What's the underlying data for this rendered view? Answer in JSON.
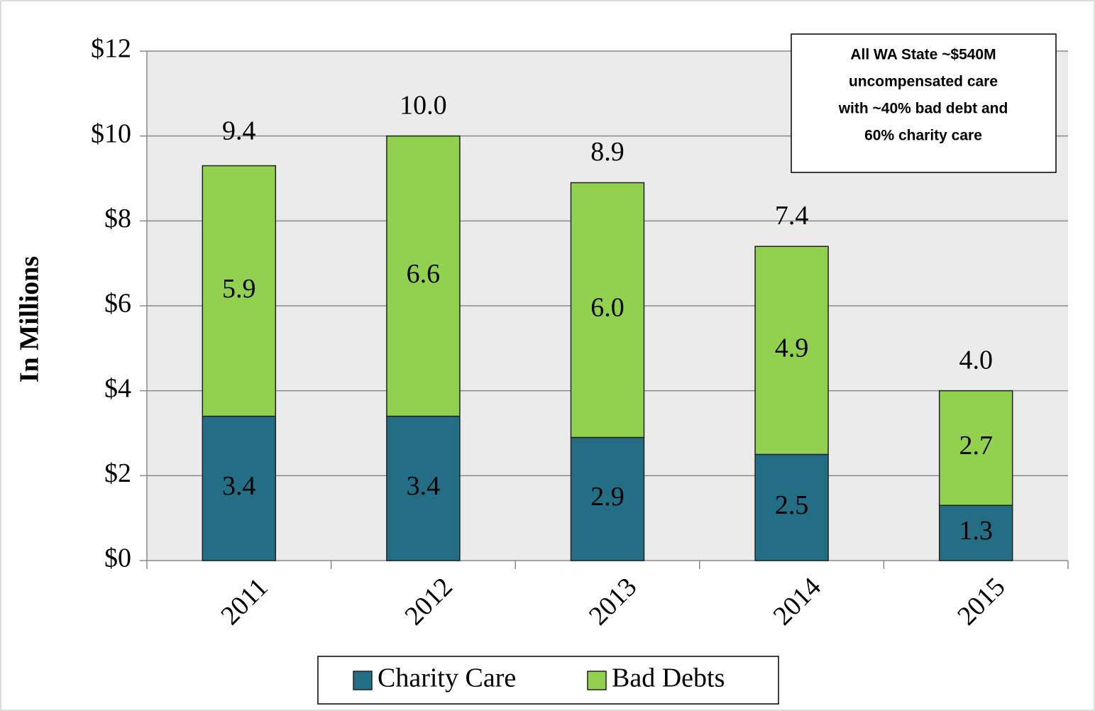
{
  "chart_data": {
    "type": "bar",
    "stacked": true,
    "ylabel": "In Millions",
    "categories": [
      "2011",
      "2012",
      "2013",
      "2014",
      "2015"
    ],
    "series": [
      {
        "name": "Charity Care",
        "color": "#236e85",
        "values": [
          3.4,
          3.4,
          2.9,
          2.5,
          1.3
        ],
        "value_labels": [
          "3.4",
          "3.4",
          "2.9",
          "2.5",
          "1.3"
        ]
      },
      {
        "name": "Bad Debts",
        "color": "#92d050",
        "values": [
          5.9,
          6.6,
          6.0,
          4.9,
          2.7
        ],
        "value_labels": [
          "5.9",
          "6.6",
          "6.0",
          "4.9",
          "2.7"
        ]
      }
    ],
    "totals": [
      9.4,
      10.0,
      8.9,
      7.4,
      4.0
    ],
    "total_labels": [
      "9.4",
      "10.0",
      "8.9",
      "7.4",
      "4.0"
    ],
    "ylim": [
      0,
      12
    ],
    "yticks": [
      {
        "value": 0,
        "label": "$0"
      },
      {
        "value": 2,
        "label": "$2"
      },
      {
        "value": 4,
        "label": "$4"
      },
      {
        "value": 6,
        "label": "$6"
      },
      {
        "value": 8,
        "label": "$8"
      },
      {
        "value": 10,
        "label": "$10"
      },
      {
        "value": 12,
        "label": "$12"
      }
    ],
    "grid": true,
    "legend": "bottom",
    "annotation": [
      "All WA State ~$540M",
      "uncompensated care",
      "with ~40% bad debt and",
      "60% charity care"
    ]
  }
}
